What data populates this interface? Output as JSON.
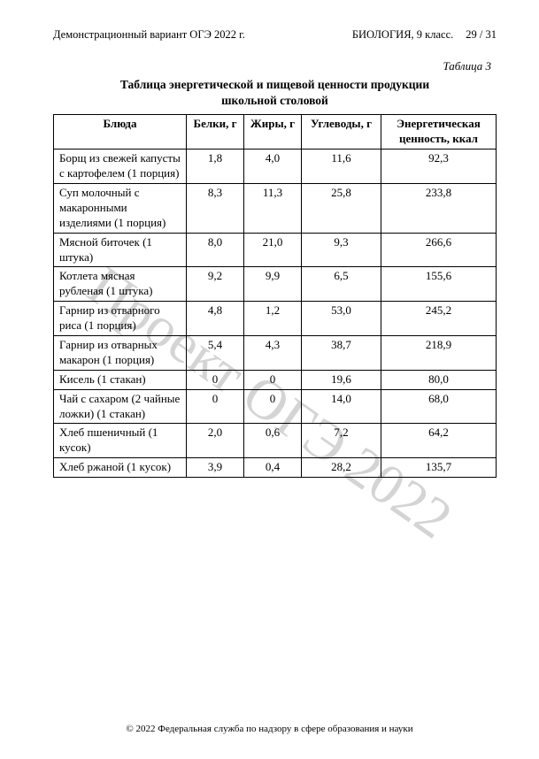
{
  "header": {
    "left": "Демонстрационный вариант ОГЭ 2022 г.",
    "subject": "БИОЛОГИЯ, 9 класс.",
    "page": "29 / 31"
  },
  "table_label": "Таблица 3",
  "table_title_line1": "Таблица энергетической и пищевой ценности продукции",
  "table_title_line2": "школьной столовой",
  "columns": [
    "Блюда",
    "Белки, г",
    "Жиры, г",
    "Углеводы, г",
    "Энергетическая ценность, ккал"
  ],
  "rows": [
    {
      "dish": "Борщ из свежей капусты с картофелем (1 порция)",
      "protein": "1,8",
      "fat": "4,0",
      "carbs": "11,6",
      "kcal": "92,3"
    },
    {
      "dish": "Суп молочный с макаронными изделиями (1 порция)",
      "protein": "8,3",
      "fat": "11,3",
      "carbs": "25,8",
      "kcal": "233,8"
    },
    {
      "dish": "Мясной биточек (1 штука)",
      "protein": "8,0",
      "fat": "21,0",
      "carbs": "9,3",
      "kcal": "266,6"
    },
    {
      "dish": "Котлета мясная рубленая (1 штука)",
      "protein": "9,2",
      "fat": "9,9",
      "carbs": "6,5",
      "kcal": "155,6"
    },
    {
      "dish": "Гарнир из отварного риса (1 порция)",
      "protein": "4,8",
      "fat": "1,2",
      "carbs": "53,0",
      "kcal": "245,2"
    },
    {
      "dish": "Гарнир из отварных макарон (1 порция)",
      "protein": "5,4",
      "fat": "4,3",
      "carbs": "38,7",
      "kcal": "218,9"
    },
    {
      "dish": "Кисель (1 стакан)",
      "protein": "0",
      "fat": "0",
      "carbs": "19,6",
      "kcal": "80,0"
    },
    {
      "dish": "Чай с сахаром (2 чайные ложки) (1 стакан)",
      "protein": "0",
      "fat": "0",
      "carbs": "14,0",
      "kcal": "68,0"
    },
    {
      "dish": "Хлеб пшеничный (1 кусок)",
      "protein": "2,0",
      "fat": "0,6",
      "carbs": "7,2",
      "kcal": "64,2"
    },
    {
      "dish": "Хлеб ржаной (1 кусок)",
      "protein": "3,9",
      "fat": "0,4",
      "carbs": "28,2",
      "kcal": "135,7"
    }
  ],
  "watermark": "Проект ОГЭ 2022",
  "footer": "© 2022 Федеральная служба по надзору в сфере образования и науки",
  "style": {
    "page_bg": "#ffffff",
    "text_color": "#000000",
    "border_color": "#000000",
    "watermark_color": "rgba(120,120,120,0.32)",
    "font_family": "Times New Roman",
    "body_fontsize": 13,
    "header_fontsize": 12.5,
    "title_fontsize": 13.5,
    "footer_fontsize": 11,
    "watermark_fontsize": 64,
    "watermark_angle_deg": 35
  }
}
